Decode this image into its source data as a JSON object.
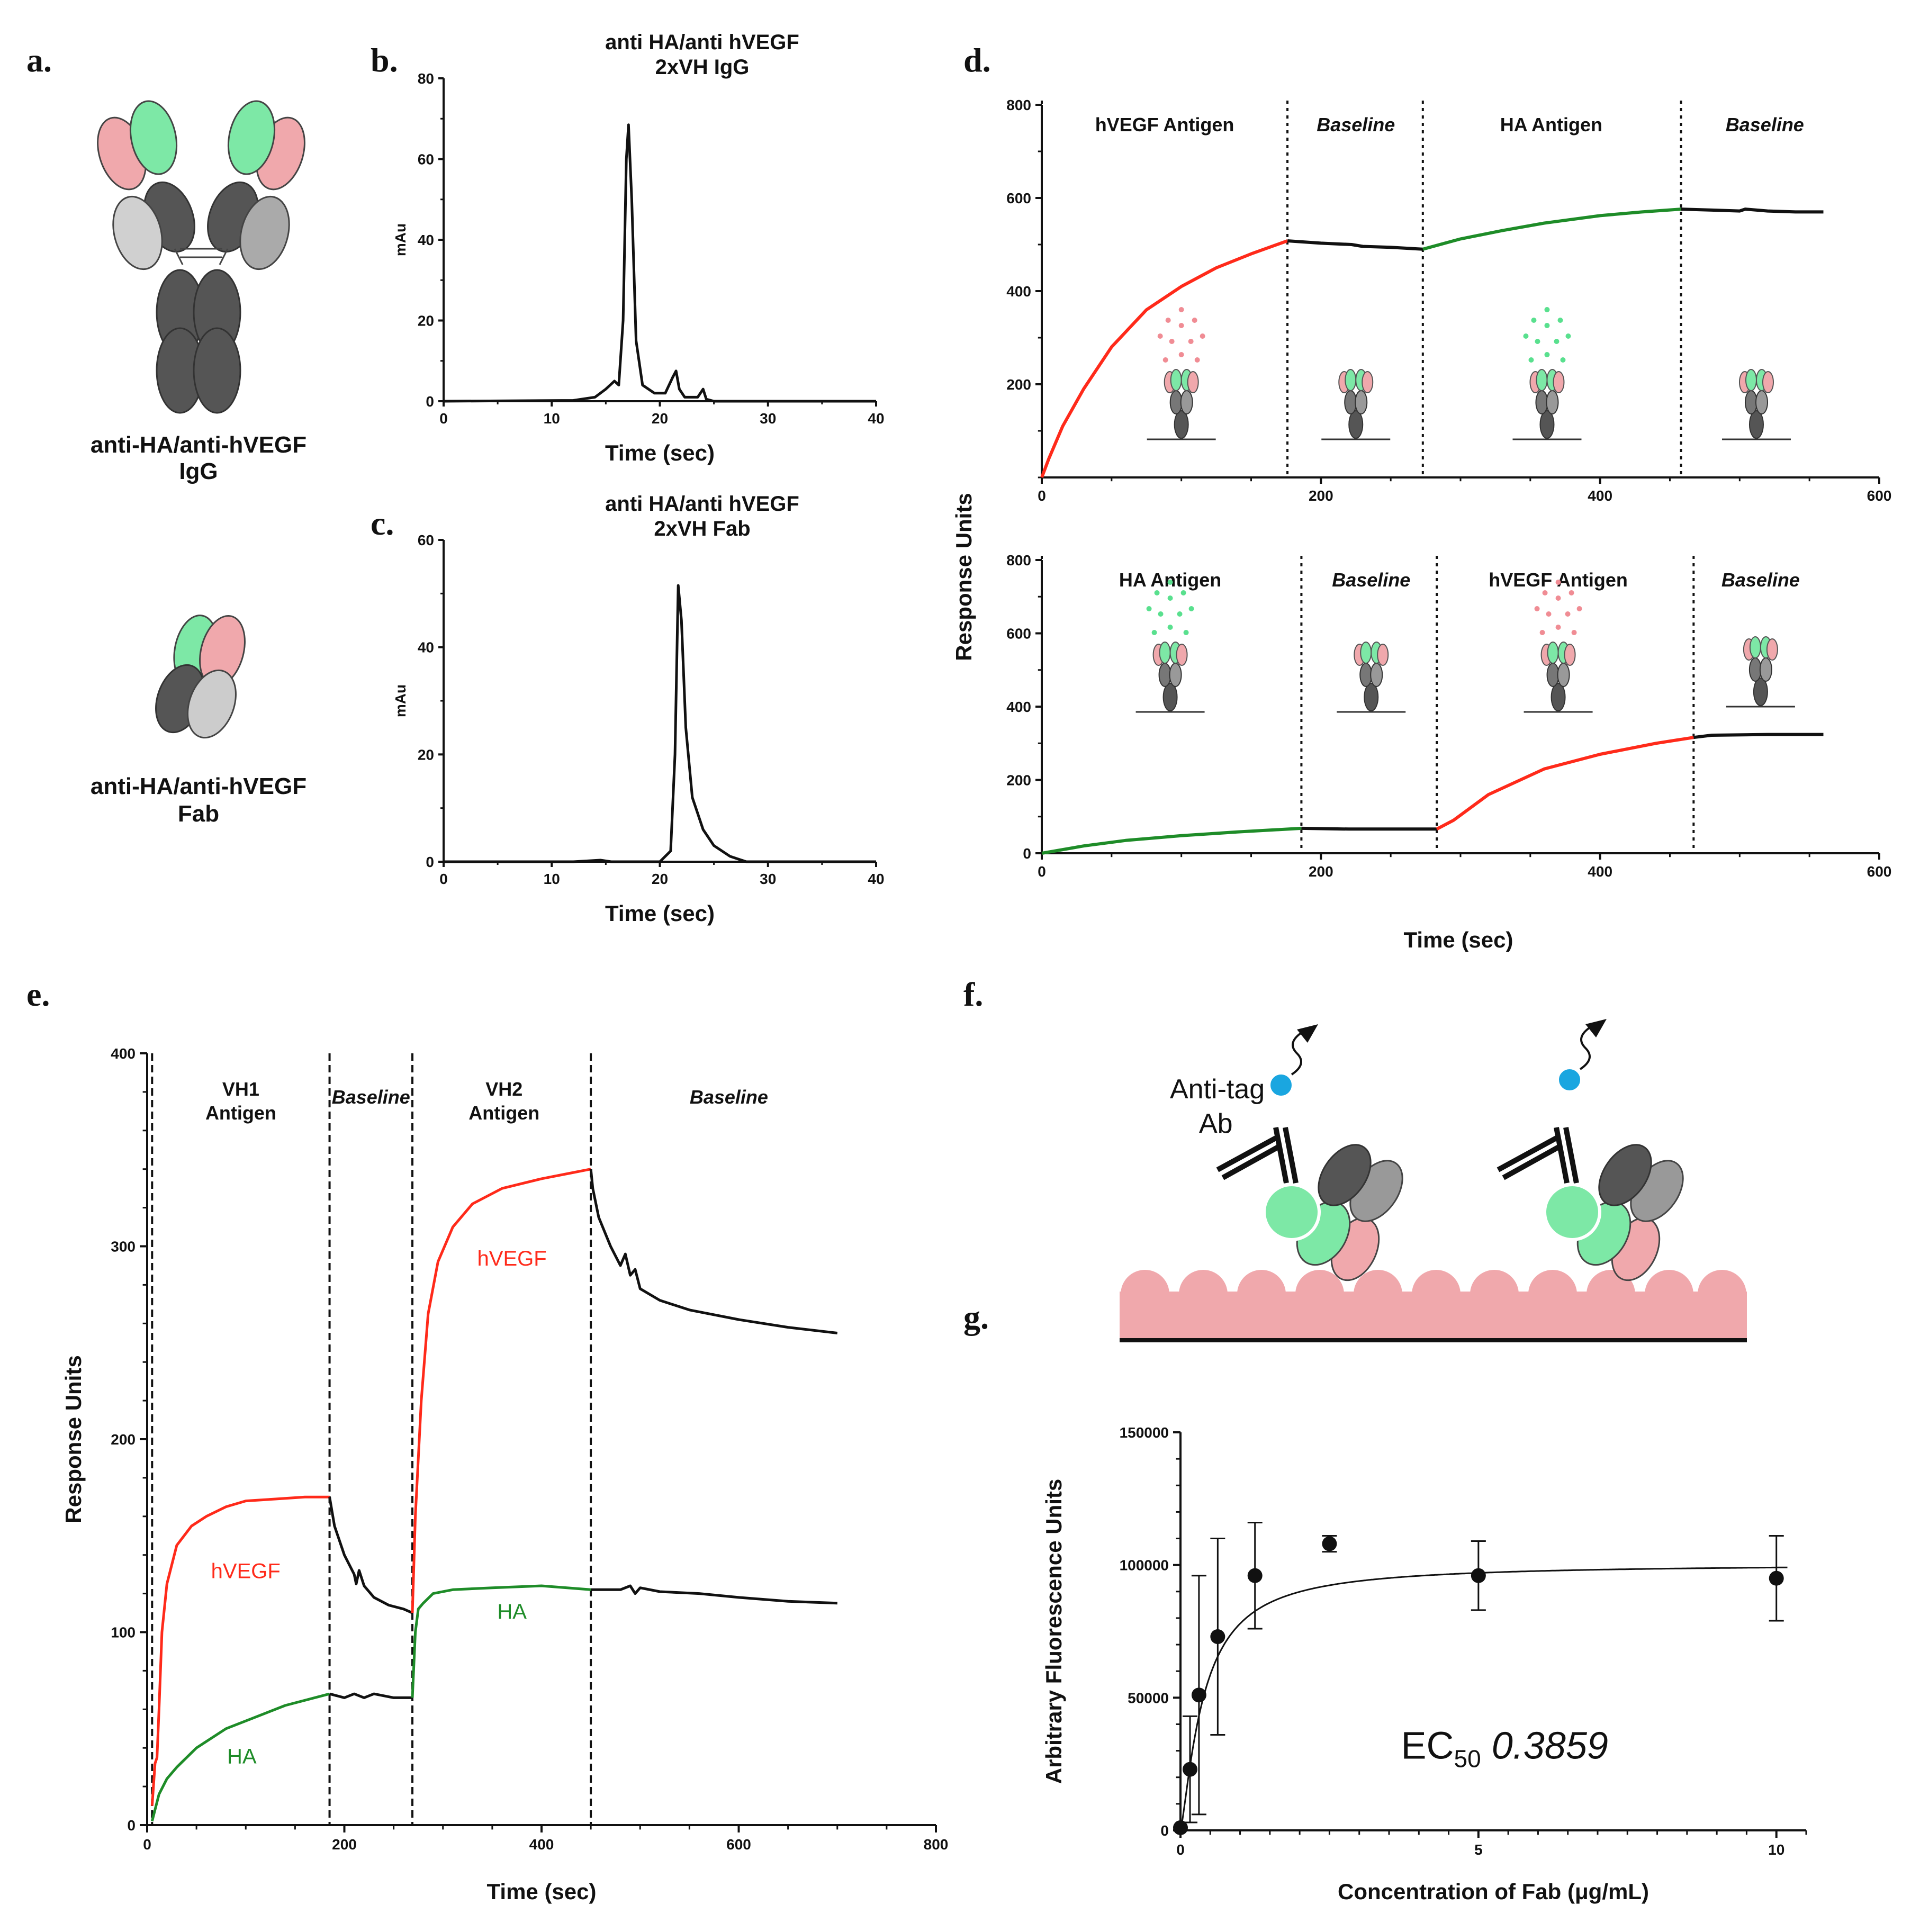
{
  "panel_letters": [
    "a.",
    "b.",
    "c.",
    "d.",
    "e.",
    "f.",
    "g."
  ],
  "panel_a": {
    "igg_caption": [
      "anti-HA/anti-hVEGF",
      "IgG"
    ],
    "fab_caption": [
      "anti-HA/anti-hVEGF",
      "Fab"
    ]
  },
  "panel_f": {
    "anti_tag": [
      "Anti-tag",
      "Ab"
    ]
  },
  "colors": {
    "red": "#ff2a1a",
    "green": "#1e8c28",
    "black": "#111111",
    "pink": "#f0a8ac",
    "mint": "#7de8a6",
    "blue": "#1aa6e0"
  },
  "chart_data": [
    {
      "id": "b",
      "type": "line",
      "title": [
        "anti HA/anti hVEGF",
        "2xVH IgG"
      ],
      "xlabel": "Time (sec)",
      "ylabel": "mAu",
      "xlim": [
        0,
        40
      ],
      "ylim": [
        0,
        80
      ],
      "xticks": [
        0,
        10,
        20,
        30,
        40
      ],
      "yticks": [
        0,
        20,
        40,
        60,
        80
      ],
      "series": [
        {
          "name": "IgG",
          "color": "#111111",
          "x": [
            0,
            12,
            14,
            15,
            15.8,
            16.2,
            16.6,
            16.9,
            17.1,
            17.4,
            17.8,
            18.4,
            19.5,
            20.5,
            21.2,
            21.5,
            21.8,
            22.3,
            23.5,
            24,
            24.3,
            25,
            30,
            40
          ],
          "y": [
            0,
            0.2,
            1,
            3,
            5,
            4,
            20,
            60,
            68.5,
            50,
            15,
            4,
            2,
            2,
            6,
            7.5,
            3,
            1,
            1,
            3,
            0.5,
            0,
            0,
            0
          ]
        }
      ]
    },
    {
      "id": "c",
      "type": "line",
      "title": [
        "anti HA/anti hVEGF",
        "2xVH Fab"
      ],
      "xlabel": "Time (sec)",
      "ylabel": "mAu",
      "xlim": [
        0,
        40
      ],
      "ylim": [
        0,
        60
      ],
      "xticks": [
        0,
        10,
        20,
        30,
        40
      ],
      "yticks": [
        0,
        20,
        40,
        60
      ],
      "series": [
        {
          "name": "Fab",
          "color": "#111111",
          "x": [
            0,
            12,
            14.5,
            15.5,
            20,
            21,
            21.4,
            21.7,
            22,
            22.4,
            23,
            24,
            25,
            26.5,
            28,
            40
          ],
          "y": [
            0,
            0,
            0.3,
            0,
            0,
            2,
            20,
            51.5,
            45,
            25,
            12,
            6,
            3,
            1,
            0,
            0
          ]
        }
      ]
    },
    {
      "id": "d-top",
      "type": "line",
      "ylabel": "Response Units",
      "xlim": [
        0,
        600
      ],
      "ylim": [
        0,
        800
      ],
      "xticks": [
        0,
        200,
        400,
        600
      ],
      "yticks": [
        200,
        400,
        600,
        800
      ],
      "phase_boundaries": [
        0,
        176,
        273,
        458
      ],
      "phases": [
        {
          "label": "hVEGF Antigen",
          "italic": false,
          "x": 88
        },
        {
          "label": "Baseline",
          "italic": true,
          "x": 225
        },
        {
          "label": "HA Antigen",
          "italic": false,
          "x": 365
        },
        {
          "label": "Baseline",
          "italic": true,
          "x": 518
        }
      ],
      "series": [
        {
          "name": "hVEGF association",
          "color": "#ff2a1a",
          "x": [
            0,
            5,
            15,
            30,
            50,
            75,
            100,
            125,
            150,
            176
          ],
          "y": [
            0,
            40,
            110,
            190,
            280,
            360,
            410,
            450,
            480,
            508
          ]
        },
        {
          "name": "baseline 1",
          "color": "#111111",
          "x": [
            176,
            200,
            222,
            230,
            250,
            273
          ],
          "y": [
            508,
            503,
            500,
            496,
            494,
            490
          ]
        },
        {
          "name": "HA association",
          "color": "#1e8c28",
          "x": [
            273,
            300,
            330,
            360,
            400,
            430,
            458
          ],
          "y": [
            490,
            512,
            530,
            546,
            562,
            570,
            576
          ]
        },
        {
          "name": "baseline 2",
          "color": "#111111",
          "x": [
            458,
            480,
            500,
            504,
            520,
            540,
            560
          ],
          "y": [
            576,
            574,
            572,
            576,
            572,
            570,
            570
          ]
        }
      ]
    },
    {
      "id": "d-bottom",
      "type": "line",
      "xlabel": "Time (sec)",
      "xlim": [
        0,
        600
      ],
      "ylim": [
        0,
        800
      ],
      "xticks": [
        0,
        200,
        400,
        600
      ],
      "yticks": [
        0,
        200,
        400,
        600,
        800
      ],
      "phase_boundaries": [
        0,
        186,
        283,
        467
      ],
      "phases": [
        {
          "label": "HA Antigen",
          "italic": false,
          "x": 92
        },
        {
          "label": "Baseline",
          "italic": true,
          "x": 236
        },
        {
          "label": "hVEGF Antigen",
          "italic": false,
          "x": 370
        },
        {
          "label": "Baseline",
          "italic": true,
          "x": 515
        }
      ],
      "series": [
        {
          "name": "HA association",
          "color": "#1e8c28",
          "x": [
            0,
            30,
            60,
            100,
            140,
            186
          ],
          "y": [
            0,
            20,
            35,
            48,
            58,
            68
          ]
        },
        {
          "name": "baseline 1",
          "color": "#111111",
          "x": [
            186,
            220,
            250,
            283
          ],
          "y": [
            68,
            66,
            66,
            66
          ]
        },
        {
          "name": "hVEGF association",
          "color": "#ff2a1a",
          "x": [
            283,
            295,
            320,
            360,
            400,
            440,
            467
          ],
          "y": [
            66,
            90,
            160,
            230,
            270,
            300,
            316
          ]
        },
        {
          "name": "baseline 2",
          "color": "#111111",
          "x": [
            467,
            480,
            520,
            560
          ],
          "y": [
            316,
            322,
            324,
            324
          ]
        }
      ]
    },
    {
      "id": "e",
      "type": "line",
      "xlabel": "Time (sec)",
      "ylabel": "Response Units",
      "xlim": [
        0,
        800
      ],
      "ylim": [
        0,
        400
      ],
      "xticks": [
        0,
        200,
        400,
        600,
        800
      ],
      "yticks": [
        0,
        100,
        200,
        300,
        400
      ],
      "phase_boundaries": [
        5,
        185,
        269,
        450
      ],
      "phases": [
        {
          "label": "VH1",
          "label2": "Antigen",
          "italic": false,
          "x": 95,
          "small": false
        },
        {
          "label": "Baseline",
          "italic": true,
          "x": 227,
          "small": true
        },
        {
          "label": "VH2",
          "label2": "Antigen",
          "italic": false,
          "x": 362,
          "small": false
        },
        {
          "label": "Baseline",
          "italic": true,
          "x": 590,
          "small": false
        }
      ],
      "curve_labels": [
        {
          "text": "hVEGF",
          "x": 100,
          "y": 128,
          "color": "#ff2a1a"
        },
        {
          "text": "HA",
          "x": 96,
          "y": 32,
          "color": "#1e8c28"
        },
        {
          "text": "hVEGF",
          "x": 370,
          "y": 290,
          "color": "#ff2a1a"
        },
        {
          "text": "HA",
          "x": 370,
          "y": 107,
          "color": "#1e8c28"
        }
      ],
      "series": [
        {
          "name": "hVEGF VH1",
          "color": "#ff2a1a",
          "x": [
            5,
            8,
            10,
            12,
            15,
            20,
            30,
            45,
            60,
            80,
            100,
            130,
            160,
            185
          ],
          "y": [
            10,
            32,
            35,
            60,
            100,
            125,
            145,
            155,
            160,
            165,
            168,
            169,
            170,
            170
          ]
        },
        {
          "name": "hVEGF dissociation",
          "color": "#111111",
          "x": [
            185,
            190,
            200,
            210,
            212,
            215,
            220,
            230,
            245,
            260,
            269
          ],
          "y": [
            170,
            155,
            140,
            130,
            125,
            132,
            124,
            118,
            114,
            112,
            110
          ]
        },
        {
          "name": "hVEGF VH2",
          "color": "#ff2a1a",
          "x": [
            269,
            272,
            278,
            285,
            295,
            310,
            330,
            360,
            400,
            430,
            450
          ],
          "y": [
            110,
            160,
            220,
            265,
            292,
            310,
            322,
            330,
            335,
            338,
            340
          ]
        },
        {
          "name": "hVEGF baseline",
          "color": "#111111",
          "x": [
            450,
            452,
            458,
            470,
            480,
            485,
            490,
            495,
            500,
            520,
            550,
            600,
            650,
            700
          ],
          "y": [
            340,
            330,
            315,
            300,
            290,
            296,
            285,
            288,
            278,
            272,
            267,
            262,
            258,
            255
          ]
        },
        {
          "name": "HA VH1",
          "color": "#1e8c28",
          "x": [
            5,
            8,
            12,
            20,
            30,
            50,
            80,
            110,
            140,
            185
          ],
          "y": [
            2,
            8,
            16,
            24,
            30,
            40,
            50,
            56,
            62,
            68
          ]
        },
        {
          "name": "HA baseline 1",
          "color": "#111111",
          "x": [
            185,
            200,
            210,
            220,
            230,
            250,
            269
          ],
          "y": [
            68,
            66,
            68,
            66,
            68,
            66,
            66
          ]
        },
        {
          "name": "HA VH2",
          "color": "#1e8c28",
          "x": [
            269,
            272,
            275,
            280,
            290,
            310,
            350,
            400,
            450
          ],
          "y": [
            66,
            100,
            112,
            115,
            120,
            122,
            123,
            124,
            122
          ]
        },
        {
          "name": "HA baseline 2",
          "color": "#111111",
          "x": [
            450,
            480,
            490,
            495,
            500,
            520,
            560,
            600,
            650,
            700
          ],
          "y": [
            122,
            122,
            124,
            120,
            123,
            121,
            120,
            118,
            116,
            115
          ]
        }
      ]
    },
    {
      "id": "g",
      "type": "scatter",
      "xlabel": "Concentration of Fab (μg/mL)",
      "ylabel": "Arbitrary Fluorescence Units",
      "xlim": [
        0,
        10.5
      ],
      "ylim": [
        0,
        150000
      ],
      "xticks": [
        0,
        5,
        10
      ],
      "yticks": [
        0,
        50000,
        100000,
        150000
      ],
      "annotation": {
        "text": "EC",
        "sub": "50",
        "value": "0.3859"
      },
      "points": {
        "x": [
          0,
          0.16,
          0.31,
          0.625,
          1.25,
          2.5,
          5,
          10
        ],
        "y": [
          1000,
          23000,
          51000,
          73000,
          96000,
          108000,
          96000,
          95000
        ],
        "err": [
          0,
          20000,
          45000,
          37000,
          20000,
          3000,
          13000,
          16000
        ]
      },
      "fit": {
        "top": 100500,
        "ec50": 0.3859,
        "hill": 1.3
      }
    }
  ]
}
